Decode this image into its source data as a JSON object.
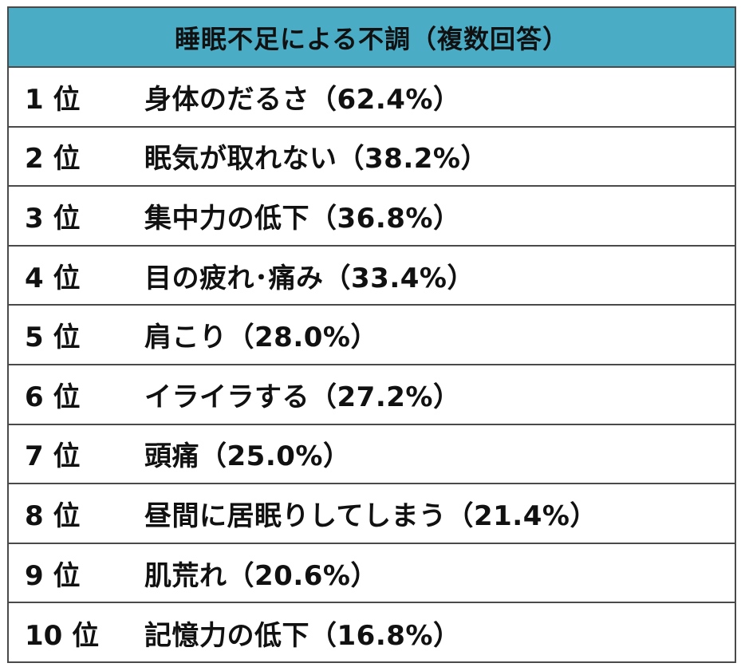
{
  "chart_data": {
    "type": "table",
    "title": "睡眠不足による不調（複数回答）",
    "rows": [
      {
        "rank": "1 位",
        "item": "身体のだるさ（62.4%）",
        "value": 62.4
      },
      {
        "rank": "2 位",
        "item": "眠気が取れない（38.2%）",
        "value": 38.2
      },
      {
        "rank": "3 位",
        "item": "集中力の低下（36.8%）",
        "value": 36.8
      },
      {
        "rank": "4 位",
        "item": "目の疲れ･痛み（33.4%）",
        "value": 33.4
      },
      {
        "rank": "5 位",
        "item": "肩こり（28.0%）",
        "value": 28.0
      },
      {
        "rank": "6 位",
        "item": "イライラする（27.2%）",
        "value": 27.2
      },
      {
        "rank": "7 位",
        "item": "頭痛（25.0%）",
        "value": 25.0
      },
      {
        "rank": "8 位",
        "item": "昼間に居眠りしてしまう（21.4%）",
        "value": 21.4
      },
      {
        "rank": "9 位",
        "item": "肌荒れ（20.6%）",
        "value": 20.6
      },
      {
        "rank": "10 位",
        "item": "記憶力の低下（16.8%）",
        "value": 16.8
      }
    ]
  },
  "colors": {
    "header_background": "#4bacc6",
    "border": "#4a4a4a",
    "text": "#111111"
  }
}
